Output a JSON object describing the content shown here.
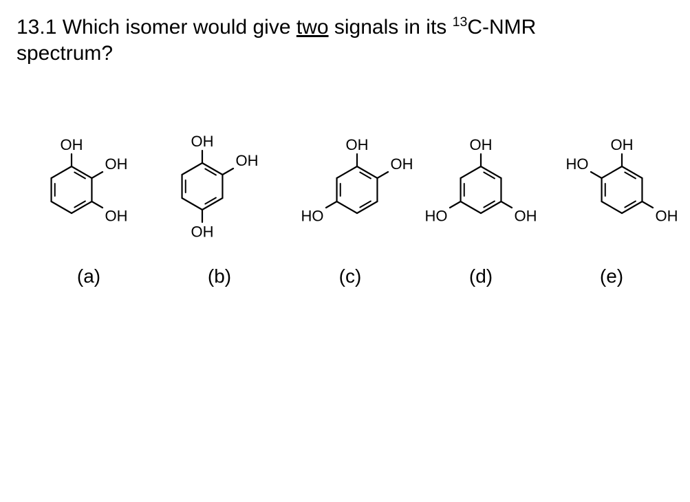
{
  "question": {
    "number": "13.1",
    "prefix": "Which isomer would give ",
    "underlined": "two",
    "middle": " signals in its ",
    "isotope_sup": "13",
    "isotope_rest": "C-NMR",
    "suffix": "spectrum?"
  },
  "labels": {
    "a": "(a)",
    "b": "(b)",
    "c": "(c)",
    "d": "(d)",
    "e": "(e)"
  },
  "chem": {
    "OH": "OH",
    "HO": "HO"
  },
  "style": {
    "bond_color": "#000000",
    "bond_width": 2.2,
    "inner_bond_width": 2.0,
    "text_size": 22,
    "page_bg": "#ffffff",
    "ring_radius": 34,
    "inner_gap": 6
  }
}
